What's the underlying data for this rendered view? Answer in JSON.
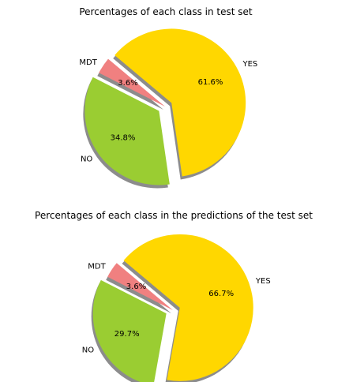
{
  "chart_data": [
    {
      "type": "pie",
      "title": "Percentages of each class in test set",
      "labels": [
        "MDT",
        "NO",
        "YES"
      ],
      "values": [
        3.6,
        34.8,
        61.6
      ],
      "value_labels": [
        "3.6%",
        "34.8%",
        "61.6%"
      ],
      "explode": [
        0,
        0.1,
        0.1
      ],
      "colors": [
        "#f08080",
        "#9acd32",
        "#ffd700"
      ],
      "shadow": true,
      "start_angle_deg": 140
    },
    {
      "type": "pie",
      "title": "Percentages of each class in the predictions of the test set",
      "labels": [
        "MDT",
        "NO",
        "YES"
      ],
      "values": [
        3.6,
        29.7,
        66.7
      ],
      "value_labels": [
        "3.6%",
        "29.7%",
        "66.7%"
      ],
      "explode": [
        0,
        0.1,
        0.1
      ],
      "colors": [
        "#f08080",
        "#9acd32",
        "#ffd700"
      ],
      "shadow": true,
      "start_angle_deg": 140
    }
  ]
}
